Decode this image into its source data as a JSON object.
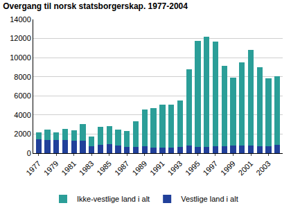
{
  "chart_data": {
    "type": "bar",
    "stacked": true,
    "title": "Overgang til norsk statsborgerskap. 1977-2004",
    "categories": [
      "1977",
      null,
      "1979",
      null,
      "1981",
      null,
      "1983",
      null,
      "1985",
      null,
      "1987",
      null,
      "1989",
      null,
      "1991",
      null,
      "1993",
      null,
      "1995",
      null,
      "1997",
      null,
      "1999",
      null,
      "2001",
      null,
      "2003",
      null
    ],
    "series": [
      {
        "name": "Vestlige land i alt",
        "color": "#21409a",
        "values": [
          1450,
          1400,
          1350,
          1400,
          1300,
          1300,
          750,
          850,
          950,
          800,
          650,
          650,
          700,
          600,
          600,
          600,
          650,
          800,
          650,
          650,
          750,
          700,
          800,
          800,
          800,
          750,
          750,
          900
        ]
      },
      {
        "name": "Ikke-vestlige land i alt",
        "color": "#2b9e98",
        "values": [
          700,
          1050,
          850,
          1150,
          1100,
          1750,
          1000,
          1900,
          1900,
          1700,
          1700,
          2700,
          3900,
          4150,
          4450,
          4500,
          4850,
          7950,
          11100,
          11550,
          10950,
          8450,
          7100,
          8700,
          10000,
          8250,
          7100,
          7150
        ]
      }
    ],
    "ylim": [
      0,
      14000
    ],
    "yticks": [
      0,
      2000,
      4000,
      6000,
      8000,
      10000,
      12000,
      14000
    ],
    "grid": true,
    "legend": "bottom"
  }
}
